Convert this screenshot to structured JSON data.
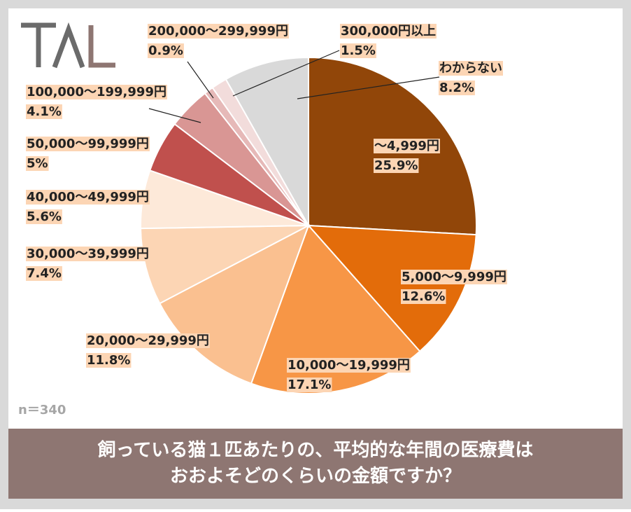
{
  "chart_data": {
    "type": "pie",
    "title": [
      "飼っている猫１匹あたりの、平均的な年間の医療費は",
      "おおよそどのくらいの金額ですか？"
    ],
    "note": "n＝340",
    "categories": [
      "～4,999円",
      "5,000～9,999円",
      "10,000～19,999円",
      "20,000～29,999円",
      "30,000～39,999円",
      "40,000～49,999円",
      "50,000～99,999円",
      "100,000～199,999円",
      "200,000～299,999円",
      "300,000円以上",
      "わからない"
    ],
    "values": [
      25.9,
      12.6,
      17.1,
      11.8,
      7.4,
      5.6,
      5,
      4.1,
      0.9,
      1.5,
      8.2
    ],
    "value_labels": [
      "25.9%",
      "12.6%",
      "17.1%",
      "11.8%",
      "7.4%",
      "5.6%",
      "5%",
      "4.1%",
      "0.9%",
      "1.5%",
      "8.2%"
    ],
    "colors": [
      "#914609",
      "#e36c0a",
      "#f79646",
      "#fac090",
      "#fcd5b4",
      "#fde9d9",
      "#c0504d",
      "#d99694",
      "#e6b9b8",
      "#f2dcdb",
      "#d9d9d9"
    ]
  }
}
